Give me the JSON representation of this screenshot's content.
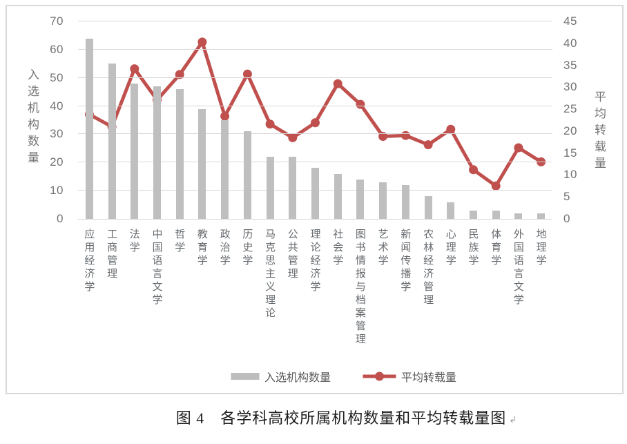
{
  "figure": {
    "caption": "图 4　各学科高校所属机构数量和平均转载量图",
    "return_mark": "↲"
  },
  "chart_data": {
    "type": "bar",
    "subtype": "combo-bar-line-dual-axis",
    "categories": [
      "应用经济学",
      "工商管理",
      "法学",
      "中国语言文学",
      "哲学",
      "教育学",
      "政治学",
      "历史学",
      "马克思主义理论",
      "公共管理",
      "理论经济学",
      "社会学",
      "图书情报与档案管理",
      "艺术学",
      "新闻传播学",
      "农林经济管理",
      "心理学",
      "民族学",
      "体育学",
      "外国语言文学",
      "地理学"
    ],
    "series": [
      {
        "name": "入选机构数量",
        "type": "bar",
        "axis": "left",
        "color": "#bfbfbf",
        "values": [
          64,
          55,
          48,
          47,
          46,
          39,
          35,
          31,
          22,
          22,
          18,
          16,
          14,
          13,
          12,
          8,
          6,
          3,
          3,
          2,
          2
        ]
      },
      {
        "name": "平均转载量",
        "type": "line",
        "axis": "right",
        "color": "#c0504d",
        "values": [
          23.8,
          21.0,
          34.2,
          27.1,
          32.9,
          40.3,
          23.4,
          33.0,
          21.6,
          18.5,
          21.9,
          30.8,
          26.1,
          18.8,
          19.0,
          16.9,
          20.4,
          11.2,
          7.5,
          16.2,
          13.0
        ]
      }
    ],
    "left_axis": {
      "title": "入选机构数量",
      "min": 0,
      "max": 70,
      "ticks": [
        0,
        10,
        20,
        30,
        40,
        50,
        60,
        70
      ]
    },
    "right_axis": {
      "title": "平均转载量",
      "min": 0,
      "max": 45,
      "ticks": [
        0,
        5,
        10,
        15,
        20,
        25,
        30,
        35,
        40,
        45
      ]
    },
    "grid": true,
    "legend_position": "bottom",
    "gridline_color": "#d9d9d9"
  }
}
